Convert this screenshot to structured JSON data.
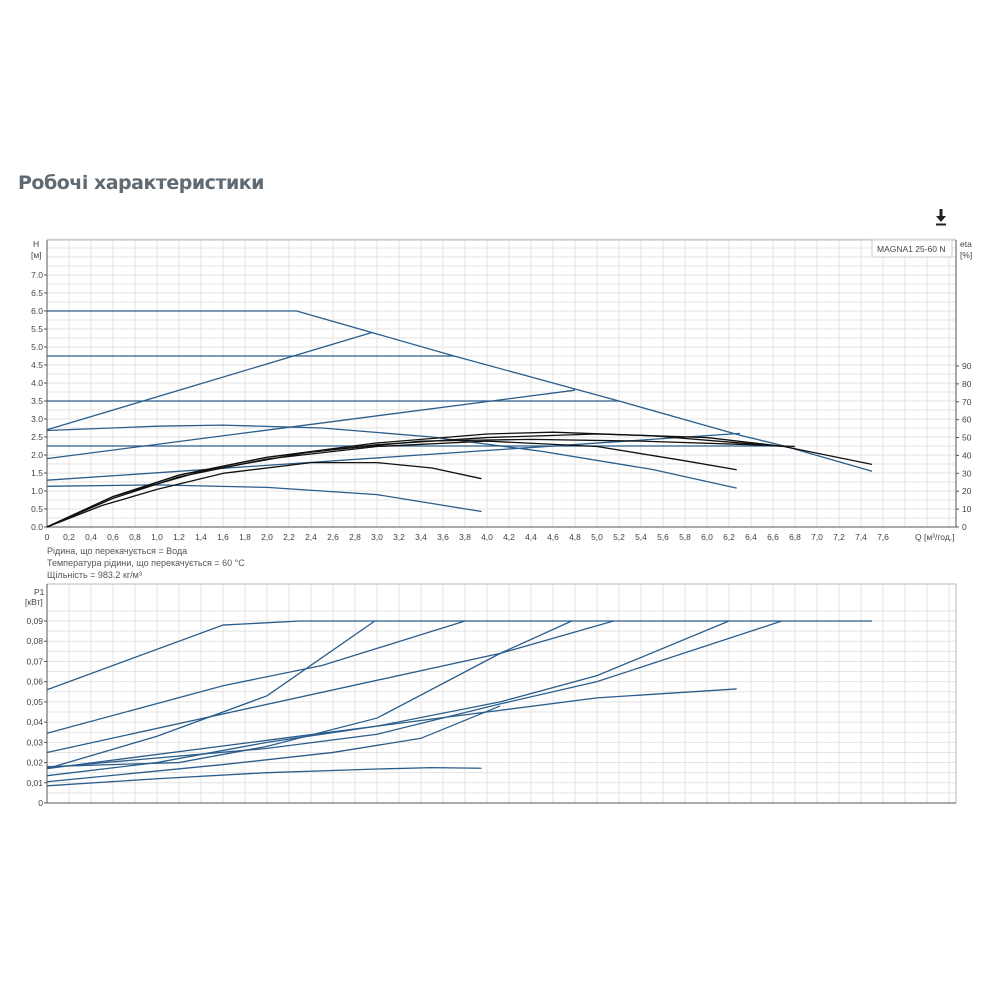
{
  "title": "Робочі характеристики",
  "download_icon": "download-icon",
  "colors": {
    "pump_curves": "#2a5d8c",
    "efficiency_curves": "#111111",
    "grid": "#e3e3e3"
  },
  "notes": [
    "Рідина, що перекачується = Вода",
    "Температура рідини, що перекачується = 60 °C",
    "Щільність = 983.2 кг/м³"
  ],
  "chart_data": [
    {
      "type": "line",
      "title": "",
      "legend": "MAGNA1 25-60 N",
      "legend_position": "top-right",
      "grid": true,
      "xlabel": "Q [м³/год.]",
      "ylabel": "H [м]",
      "y2label": "eta [%]",
      "xlim": [
        0,
        8.2
      ],
      "ylim": [
        0,
        8
      ],
      "y2lim": [
        0,
        160
      ],
      "x_ticks": [
        "0",
        "0,2",
        "0,4",
        "0,6",
        "0,8",
        "1,0",
        "1,2",
        "1,4",
        "1,6",
        "1,8",
        "2,0",
        "2,2",
        "2,4",
        "2,6",
        "2,8",
        "3,0",
        "3,2",
        "3,4",
        "3,6",
        "3,8",
        "4,0",
        "4,2",
        "4,4",
        "4,6",
        "4,8",
        "5,0",
        "5,2",
        "5,4",
        "5,6",
        "5,8",
        "6,0",
        "6,2",
        "6,4",
        "6,6",
        "6,8",
        "7,0",
        "7,2",
        "7,4",
        "7,6"
      ],
      "y_ticks": [
        "0.0",
        "0.5",
        "1.0",
        "1.5",
        "2.0",
        "2.5",
        "3.0",
        "3.5",
        "4.0",
        "4.5",
        "5.0",
        "5.5",
        "6.0",
        "6.5",
        "7.0"
      ],
      "y2_ticks": [
        "0",
        "10",
        "20",
        "30",
        "40",
        "50",
        "60",
        "70",
        "80",
        "90"
      ],
      "head_series": [
        [
          [
            0,
            6.0
          ],
          [
            2.27,
            6.0
          ],
          [
            3.7,
            4.75
          ],
          [
            5.2,
            3.5
          ],
          [
            6.3,
            2.55
          ],
          [
            6.7,
            2.25
          ],
          [
            7.5,
            1.55
          ]
        ],
        [
          [
            0,
            4.75
          ],
          [
            3.7,
            4.75
          ]
        ],
        [
          [
            0,
            3.5
          ],
          [
            5.2,
            3.5
          ]
        ],
        [
          [
            0,
            2.25
          ],
          [
            6.7,
            2.25
          ]
        ],
        [
          [
            0,
            2.7
          ],
          [
            2.95,
            5.4
          ]
        ],
        [
          [
            0,
            1.9
          ],
          [
            4.8,
            3.8
          ]
        ],
        [
          [
            0,
            1.3
          ],
          [
            6.3,
            2.6
          ]
        ],
        [
          [
            0,
            2.68
          ],
          [
            1.0,
            2.8
          ],
          [
            1.6,
            2.83
          ],
          [
            2.5,
            2.75
          ],
          [
            3.5,
            2.5
          ],
          [
            4.5,
            2.1
          ],
          [
            5.5,
            1.6
          ],
          [
            6.27,
            1.08
          ]
        ],
        [
          [
            0,
            1.13
          ],
          [
            1.0,
            1.17
          ],
          [
            2.0,
            1.1
          ],
          [
            3.0,
            0.9
          ],
          [
            3.95,
            0.43
          ]
        ]
      ],
      "efficiency_series": [
        [
          [
            0,
            0
          ],
          [
            0.6,
            17
          ],
          [
            1.2,
            29
          ],
          [
            2,
            39
          ],
          [
            3,
            46
          ],
          [
            4,
            50
          ],
          [
            5,
            52
          ],
          [
            6,
            50
          ],
          [
            6.7,
            45
          ],
          [
            7.5,
            35
          ]
        ],
        [
          [
            0,
            0
          ],
          [
            0.6,
            17
          ],
          [
            1.2,
            29
          ],
          [
            2,
            39
          ],
          [
            3,
            47
          ],
          [
            4,
            52
          ],
          [
            4.6,
            53
          ],
          [
            5.5,
            51
          ],
          [
            6.3,
            47
          ],
          [
            6.7,
            45
          ]
        ],
        [
          [
            0,
            0
          ],
          [
            0.6,
            17
          ],
          [
            1.4,
            31
          ],
          [
            2.4,
            42
          ],
          [
            3.4,
            48
          ],
          [
            4.4,
            49
          ],
          [
            5.4,
            48
          ],
          [
            6.4,
            46
          ],
          [
            6.8,
            45
          ]
        ],
        [
          [
            0,
            0
          ],
          [
            0.6,
            16
          ],
          [
            1.2,
            28
          ],
          [
            2,
            38
          ],
          [
            3,
            45
          ],
          [
            4,
            48
          ],
          [
            5,
            45
          ],
          [
            5.8,
            37
          ],
          [
            6.27,
            32
          ]
        ],
        [
          [
            0,
            0
          ],
          [
            0.5,
            12
          ],
          [
            1,
            21
          ],
          [
            1.6,
            30
          ],
          [
            2.4,
            36
          ],
          [
            3,
            36
          ],
          [
            3.5,
            33
          ],
          [
            3.95,
            27
          ]
        ]
      ]
    },
    {
      "type": "line",
      "title": "",
      "grid": true,
      "ylabel": "P1 [кВт]",
      "xlim": [
        0,
        8.2
      ],
      "ylim": [
        0,
        0.1
      ],
      "y_ticks": [
        "0",
        "0,01",
        "0,02",
        "0,03",
        "0,04",
        "0,05",
        "0,06",
        "0,07",
        "0,08",
        "0,09"
      ],
      "power_series": [
        [
          [
            0,
            0.056
          ],
          [
            1.6,
            0.088
          ],
          [
            2.3,
            0.09
          ],
          [
            7.5,
            0.09
          ]
        ],
        [
          [
            0,
            0.0345
          ],
          [
            1.6,
            0.058
          ],
          [
            2.5,
            0.068
          ],
          [
            3.8,
            0.09
          ]
        ],
        [
          [
            0,
            0.017
          ],
          [
            1,
            0.033
          ],
          [
            2,
            0.053
          ],
          [
            2.98,
            0.09
          ]
        ],
        [
          [
            0,
            0.025
          ],
          [
            4.12,
            0.074
          ],
          [
            5.15,
            0.09
          ]
        ],
        [
          [
            0,
            0.018
          ],
          [
            1.2,
            0.02
          ],
          [
            2,
            0.028
          ],
          [
            3,
            0.042
          ],
          [
            4.12,
            0.074
          ],
          [
            4.77,
            0.09
          ]
        ],
        [
          [
            0,
            0.0135
          ],
          [
            1,
            0.02
          ],
          [
            2,
            0.03
          ],
          [
            3,
            0.038
          ],
          [
            4.12,
            0.05
          ],
          [
            5,
            0.063
          ],
          [
            6.2,
            0.09
          ]
        ],
        [
          [
            0,
            0.0175
          ],
          [
            2,
            0.027
          ],
          [
            3,
            0.034
          ],
          [
            4.12,
            0.049
          ],
          [
            5,
            0.06
          ],
          [
            6.68,
            0.09
          ]
        ],
        [
          [
            0,
            0.017
          ],
          [
            2,
            0.031
          ],
          [
            3,
            0.038
          ],
          [
            4,
            0.045
          ],
          [
            5,
            0.052
          ],
          [
            6.27,
            0.0564
          ]
        ],
        [
          [
            0,
            0.0105
          ],
          [
            1.6,
            0.019
          ],
          [
            2.6,
            0.025
          ],
          [
            3.4,
            0.032
          ],
          [
            4.12,
            0.048
          ]
        ],
        [
          [
            0,
            0.0085
          ],
          [
            1,
            0.012
          ],
          [
            2,
            0.015
          ],
          [
            3,
            0.0168
          ],
          [
            3.5,
            0.0175
          ],
          [
            3.95,
            0.0172
          ]
        ]
      ]
    }
  ]
}
